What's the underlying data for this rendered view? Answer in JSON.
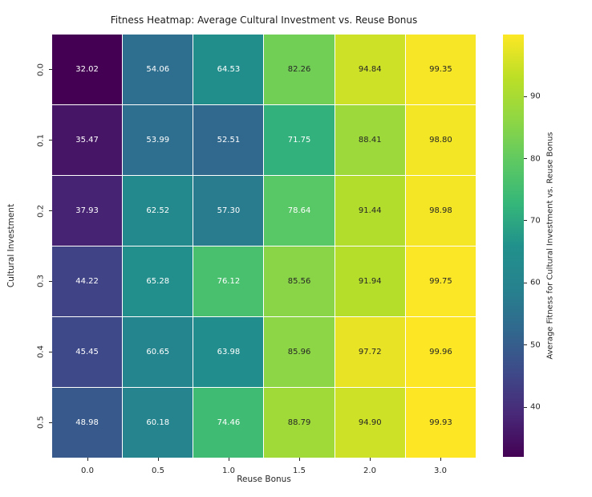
{
  "chart_data": {
    "type": "heatmap",
    "title": "Fitness Heatmap: Average Cultural Investment vs. Reuse Bonus",
    "xlabel": "Reuse Bonus",
    "ylabel": "Cultural Investment",
    "x_tick_labels": [
      "0.0",
      "0.5",
      "1.0",
      "1.5",
      "2.0",
      "3.0"
    ],
    "y_tick_labels": [
      "0.0",
      "0.1",
      "0.2",
      "0.3",
      "0.4",
      "0.5"
    ],
    "values": [
      [
        32.02,
        54.06,
        64.53,
        82.26,
        94.84,
        99.35
      ],
      [
        35.47,
        53.99,
        52.51,
        71.75,
        88.41,
        98.8
      ],
      [
        37.93,
        62.52,
        57.3,
        78.64,
        91.44,
        98.98
      ],
      [
        44.22,
        65.28,
        76.12,
        85.56,
        91.94,
        99.75
      ],
      [
        45.45,
        60.65,
        63.98,
        85.96,
        97.72,
        99.96
      ],
      [
        48.98,
        60.18,
        74.46,
        88.79,
        94.9,
        99.93
      ]
    ],
    "value_decimals": 2,
    "vmin": 32.02,
    "vmax": 99.96,
    "colormap_name": "viridis",
    "colormap_stops": [
      "#440154",
      "#482878",
      "#3e4a89",
      "#31688e",
      "#26828e",
      "#21918c",
      "#35b779",
      "#5ec962",
      "#90d743",
      "#bddf26",
      "#fde725"
    ],
    "grid_line_color": "#ffffff",
    "annotation_light_text": "#ffffff",
    "annotation_dark_text": "#262626",
    "colorbar": {
      "label": "Average Fitness for Cultural Investment vs. Reuse Bonus",
      "tick_values": [
        40,
        50,
        60,
        70,
        80,
        90
      ]
    }
  }
}
